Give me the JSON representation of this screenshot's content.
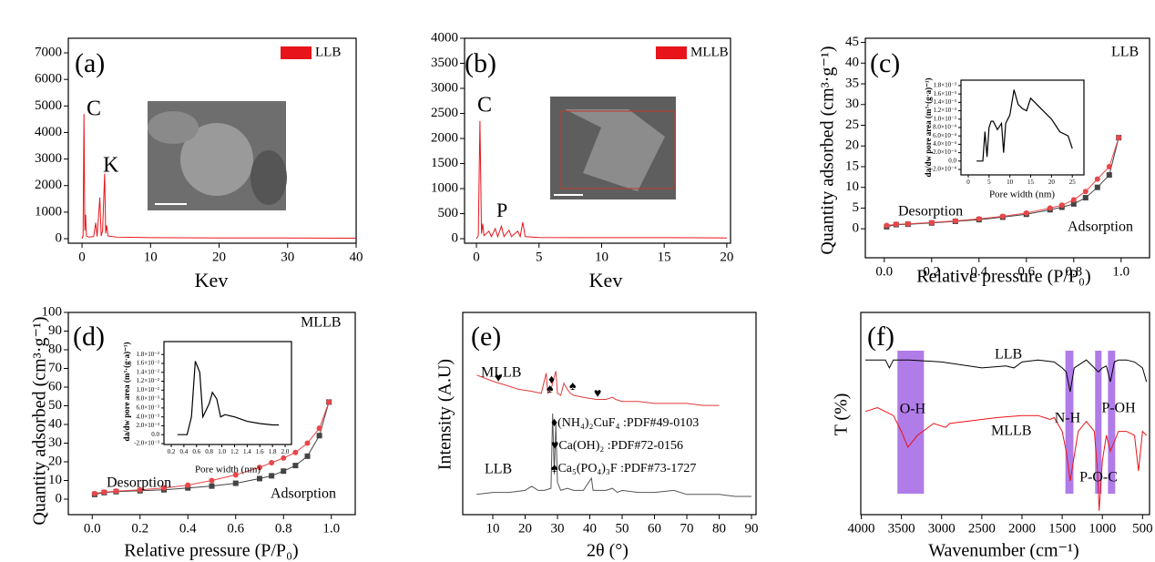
{
  "chart_data": [
    {
      "type": "line",
      "x_label": "Kev",
      "annotations": [
        "(a)",
        "C",
        "K"
      ],
      "xlim": [
        -2,
        40
      ],
      "xticks": [
        0,
        10,
        20,
        30,
        40
      ],
      "ylim": [
        -170,
        7550
      ],
      "yticks": [
        0,
        1000,
        2000,
        3000,
        4000,
        5000,
        6000,
        7000
      ],
      "x": [
        0,
        0.15,
        0.28,
        0.4,
        0.52,
        0.65,
        1.0,
        1.7,
        2.0,
        2.2,
        2.6,
        2.8,
        3.0,
        3.3,
        3.45,
        3.6,
        3.8,
        5,
        10,
        20,
        30,
        40
      ],
      "series": [
        {
          "name": "LLB",
          "color": "#e8141b",
          "values": [
            0,
            100,
            4700,
            300,
            900,
            100,
            60,
            80,
            600,
            80,
            1550,
            100,
            300,
            2450,
            200,
            500,
            100,
            60,
            40,
            30,
            25,
            20
          ]
        }
      ]
    },
    {
      "type": "line",
      "x_label": "Kev",
      "annotations": [
        "(b)",
        "C",
        "P"
      ],
      "xlim": [
        -0.95,
        20.3
      ],
      "xticks": [
        0,
        5,
        10,
        15,
        20
      ],
      "ylim": [
        -90,
        4000
      ],
      "yticks": [
        0,
        500,
        1000,
        1500,
        2000,
        2500,
        3000,
        3500,
        4000
      ],
      "x": [
        0,
        0.15,
        0.28,
        0.4,
        0.5,
        0.6,
        1.0,
        1.2,
        1.5,
        1.7,
        2.0,
        2.2,
        2.6,
        2.8,
        3.3,
        3.5,
        3.7,
        3.9,
        5,
        10,
        15,
        20
      ],
      "series": [
        {
          "name": "MLLB",
          "color": "#e8141b",
          "values": [
            0,
            60,
            2350,
            100,
            300,
            60,
            150,
            40,
            200,
            40,
            250,
            40,
            170,
            40,
            150,
            40,
            330,
            40,
            25,
            20,
            20,
            15
          ]
        }
      ]
    },
    {
      "type": "line",
      "x_label": "Relative pressure (P/P₀)",
      "y_label": "Quantity adsorbed (cm³·g⁻¹)",
      "annotations": [
        "(c)",
        "LLB",
        "Desorption",
        "Adsorption"
      ],
      "xlim": [
        -0.08,
        1.12
      ],
      "xticks": [
        {
          "value": 0,
          "label": "0.0"
        },
        0.2,
        0.4,
        0.6,
        0.8,
        {
          "value": 1,
          "label": "1.0"
        }
      ],
      "ylim": [
        -7,
        46
      ],
      "yticks": [
        0,
        5,
        10,
        15,
        20,
        25,
        30,
        35,
        40,
        45
      ],
      "x": [
        0.01,
        0.05,
        0.1,
        0.2,
        0.3,
        0.4,
        0.5,
        0.6,
        0.7,
        0.75,
        0.8,
        0.85,
        0.9,
        0.95,
        0.99
      ],
      "series": [
        {
          "color": "#444444",
          "marker": "square",
          "values": [
            0.5,
            1.0,
            1.1,
            1.4,
            1.8,
            2.2,
            2.8,
            3.5,
            4.6,
            5.2,
            6.0,
            7.5,
            10,
            13,
            22
          ]
        },
        {
          "color": "#e8474a",
          "marker": "circle",
          "values": [
            0.8,
            1.1,
            1.2,
            1.5,
            1.9,
            2.4,
            3.0,
            3.8,
            5.0,
            5.7,
            7.0,
            9.0,
            12,
            15,
            22
          ]
        }
      ]
    },
    {
      "type": "line",
      "inset": true,
      "x_label": "Pore width (nm)",
      "y_label": "da/dw pore area (m³·(g·a)⁻¹)",
      "xlim": [
        -1.75,
        27.8
      ],
      "xticks": [
        0,
        5,
        10,
        15,
        20,
        25
      ],
      "ylim": [
        -0.00033,
        0.00193
      ],
      "yticks": [
        {
          "value": -0.0002,
          "label": "-2.0×10⁻⁴"
        },
        {
          "value": 0,
          "label": "0.0"
        },
        {
          "value": 0.0002,
          "label": "2.0×10⁻⁴"
        },
        {
          "value": 0.0004,
          "label": "4.0×10⁻⁴"
        },
        {
          "value": 0.0006,
          "label": "6.0×10⁻⁴"
        },
        {
          "value": 0.0008,
          "label": "8.0×10⁻⁴"
        },
        {
          "value": 0.001,
          "label": "1.0×10⁻³"
        },
        {
          "value": 0.0012,
          "label": "1.2×10⁻³"
        },
        {
          "value": 0.0014,
          "label": "1.4×10⁻³"
        },
        {
          "value": 0.0016,
          "label": "1.6×10⁻³"
        },
        {
          "value": 0.0018,
          "label": "1.8×10⁻³"
        }
      ],
      "x": [
        2,
        3.5,
        4,
        4.5,
        5,
        5.5,
        6,
        7,
        8,
        8.5,
        9,
        9.5,
        10,
        11,
        12,
        13,
        14,
        15,
        16,
        18,
        20,
        22,
        24,
        25
      ],
      "series": [
        {
          "color": "#000000",
          "values": [
            0,
            0,
            0.0007,
            0.0001,
            0.0008,
            0.00095,
            0.00095,
            0.00075,
            0.0009,
            0.0002,
            0.0009,
            0.001,
            0.0011,
            0.0017,
            0.00135,
            0.00125,
            0.0012,
            0.0015,
            0.0014,
            0.0012,
            0.001,
            0.0007,
            0.0006,
            0.0003
          ]
        }
      ]
    },
    {
      "type": "line",
      "x_label": "Relative pressure (P/P₀)",
      "y_label": "Quantity adsorbed (cm³·g⁻¹)",
      "annotations": [
        "(d)",
        "MLLB",
        "Desorption",
        "Adsorption"
      ],
      "xlim": [
        -0.1,
        1.1
      ],
      "xticks": [
        {
          "value": 0,
          "label": "0.0"
        },
        0.2,
        0.4,
        0.6,
        0.8,
        {
          "value": 1,
          "label": "1.0"
        }
      ],
      "ylim": [
        -8.3,
        100
      ],
      "yticks": [
        0,
        10,
        20,
        30,
        40,
        50,
        60,
        70,
        80,
        90,
        100
      ],
      "x": [
        0.01,
        0.05,
        0.1,
        0.2,
        0.3,
        0.4,
        0.5,
        0.6,
        0.7,
        0.75,
        0.8,
        0.85,
        0.9,
        0.95,
        0.99
      ],
      "series": [
        {
          "color": "#444444",
          "marker": "square",
          "values": [
            2.5,
            3.5,
            4,
            4.5,
            5,
            6,
            7,
            8.5,
            11,
            12.5,
            15,
            18,
            23,
            34,
            52
          ]
        },
        {
          "color": "#e8474a",
          "marker": "circle",
          "values": [
            3,
            3.8,
            4.3,
            5,
            6,
            7.5,
            10,
            13,
            17,
            19.5,
            22,
            25,
            30,
            38,
            52
          ]
        }
      ]
    },
    {
      "type": "line",
      "inset": true,
      "x_label": "Pore width (nm)",
      "y_label": "da/dw pore area (m³·(g·a)⁻¹)",
      "xlim": [
        0.085,
        2.1
      ],
      "xticks": [
        0.2,
        0.4,
        0.6,
        0.8,
        {
          "value": 1,
          "label": "1.0"
        },
        1.2,
        1.4,
        1.6,
        1.8,
        {
          "value": 2,
          "label": "2.0"
        }
      ],
      "ylim": [
        -0.0022,
        0.0209
      ],
      "yticks": [
        {
          "value": -0.002,
          "label": "-2.0×10⁻³"
        },
        {
          "value": 0,
          "label": "0.0"
        },
        {
          "value": 0.002,
          "label": "2.0×10⁻³"
        },
        {
          "value": 0.004,
          "label": "4.0×10⁻³"
        },
        {
          "value": 0.006,
          "label": "6.0×10⁻³"
        },
        {
          "value": 0.008,
          "label": "8.0×10⁻³"
        },
        {
          "value": 0.01,
          "label": "1.0×10⁻²"
        },
        {
          "value": 0.012,
          "label": "1.2×10⁻²"
        },
        {
          "value": 0.014,
          "label": "1.4×10⁻²"
        },
        {
          "value": 0.016,
          "label": "1.6×10⁻²"
        },
        {
          "value": 0.018,
          "label": "1.8×10⁻²"
        }
      ],
      "x": [
        0.3,
        0.45,
        0.52,
        0.58,
        0.65,
        0.7,
        0.8,
        0.85,
        0.92,
        0.98,
        1.05,
        1.2,
        1.4,
        1.6,
        1.8,
        1.9
      ],
      "series": [
        {
          "color": "#000000",
          "values": [
            0,
            0,
            0.004,
            0.0165,
            0.014,
            0.004,
            0.007,
            0.0095,
            0.008,
            0.004,
            0.0045,
            0.004,
            0.003,
            0.0025,
            0.0022,
            0.0022
          ]
        }
      ]
    },
    {
      "type": "line",
      "x_label": "2θ (°)",
      "y_label": "Intensity (A.U)",
      "annotations": [
        "(e)",
        "MLLB",
        "LLB",
        "♦(NH₄)₂CuF₄ :PDF#49-0103",
        "♥Ca(OH)₂    :PDF#72-0156",
        "♠Ca₅(PO₄)₃F :PDF#73-1727",
        "♥",
        "♦",
        "♠",
        "♠",
        "♥"
      ],
      "xlim": [
        0.7,
        91.4
      ],
      "xticks": [
        10,
        20,
        30,
        40,
        50,
        60,
        70,
        80,
        90
      ],
      "ylim": [
        0,
        100
      ],
      "series": [
        {
          "color": "#e03a3a",
          "x": [
            5,
            10,
            14,
            18,
            22,
            25,
            26.5,
            27,
            28,
            29.5,
            30,
            31,
            32,
            33,
            34,
            35,
            38,
            42,
            45,
            47,
            48,
            50,
            55,
            60,
            65,
            70,
            75,
            80
          ],
          "values": [
            69,
            66,
            64,
            62,
            61,
            60,
            70,
            60,
            62,
            71,
            60,
            59,
            65,
            62,
            60,
            59,
            58,
            57,
            57,
            58,
            57,
            56,
            56,
            55,
            55,
            55,
            54,
            54
          ]
        },
        {
          "color": "#555555",
          "x": [
            5,
            10,
            15,
            20,
            22,
            23,
            24,
            26,
            28,
            28.5,
            29,
            29.5,
            30,
            31,
            33,
            35,
            38,
            40.5,
            41,
            42,
            45,
            47,
            48.5,
            50,
            55,
            60,
            66,
            70,
            75,
            80,
            85,
            90
          ],
          "values": [
            10,
            11,
            11,
            12,
            14,
            13,
            12,
            12,
            13,
            50,
            20,
            45,
            16,
            12,
            13,
            12,
            12,
            18,
            12,
            12,
            12,
            13,
            11,
            12,
            11,
            11,
            12,
            10,
            10,
            10,
            9,
            9
          ]
        }
      ]
    },
    {
      "type": "line",
      "x_label": "Wavenumber (cm⁻¹)",
      "y_label": "T (%)",
      "annotations": [
        "(f)",
        "LLB",
        "MLLB"
      ],
      "xlim": [
        4006,
        413
      ],
      "xticks": [
        4000,
        3500,
        3000,
        2500,
        2000,
        1500,
        1000,
        500
      ],
      "ylim": [
        -2,
        100
      ],
      "bands": [
        {
          "label": "O-H",
          "range": [
            3550,
            3220
          ]
        },
        {
          "label": "N-H",
          "range": [
            1460,
            1360
          ]
        },
        {
          "label": "P-O-C",
          "range": [
            1090,
            1010
          ]
        },
        {
          "label": "P-OH",
          "range": [
            930,
            840
          ]
        }
      ],
      "band_color": "#b07ce8",
      "series": [
        {
          "color": "#000000",
          "x": [
            3950,
            3800,
            3700,
            3650,
            3600,
            3400,
            3000,
            2500,
            2200,
            2100,
            2000,
            1800,
            1600,
            1500,
            1450,
            1400,
            1350,
            1200,
            1100,
            1050,
            1000,
            950,
            900,
            850,
            800,
            700,
            600,
            500,
            450
          ],
          "values": [
            76,
            76,
            76,
            72,
            76,
            76,
            75,
            72,
            73,
            72,
            75,
            76,
            75,
            72,
            70,
            60,
            72,
            76,
            72,
            70,
            72,
            73,
            65,
            75,
            76,
            76,
            75,
            72,
            65
          ]
        },
        {
          "color": "#e8141b",
          "x": [
            3950,
            3800,
            3600,
            3500,
            3420,
            3300,
            3100,
            2950,
            2900,
            2500,
            2300,
            2000,
            1800,
            1650,
            1600,
            1500,
            1450,
            1400,
            1300,
            1200,
            1100,
            1060,
            1040,
            1000,
            950,
            900,
            800,
            700,
            600,
            550,
            500,
            450
          ],
          "values": [
            50,
            52,
            48,
            40,
            32,
            38,
            44,
            42,
            44,
            46,
            47,
            48,
            48,
            46,
            47,
            40,
            30,
            15,
            40,
            45,
            40,
            20,
            0,
            25,
            38,
            30,
            40,
            40,
            38,
            20,
            40,
            38
          ]
        }
      ]
    }
  ]
}
